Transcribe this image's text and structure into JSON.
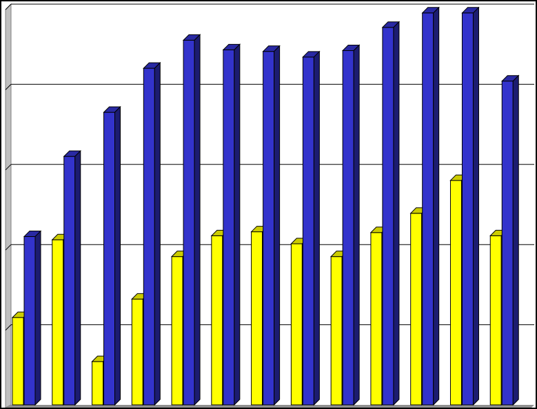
{
  "chart_data": {
    "type": "bar",
    "categories": [
      "",
      "",
      "",
      "",
      "",
      "",
      "",
      "",
      "",
      "",
      "",
      "",
      ""
    ],
    "series": [
      {
        "values": [
          1.09,
          2.06,
          0.54,
          1.32,
          1.85,
          2.11,
          2.16,
          2.01,
          1.85,
          2.15,
          2.39,
          2.8,
          2.11
        ],
        "color": "#ffff00"
      },
      {
        "values": [
          2.1,
          3.1,
          3.65,
          4.2,
          4.55,
          4.43,
          4.41,
          4.34,
          4.42,
          4.71,
          4.89,
          4.89,
          4.04
        ],
        "color": "#3333cc"
      }
    ],
    "ylim": [
      0,
      5
    ],
    "grid": true,
    "legend": "none",
    "title": "",
    "xlabel": "",
    "ylabel": ""
  }
}
